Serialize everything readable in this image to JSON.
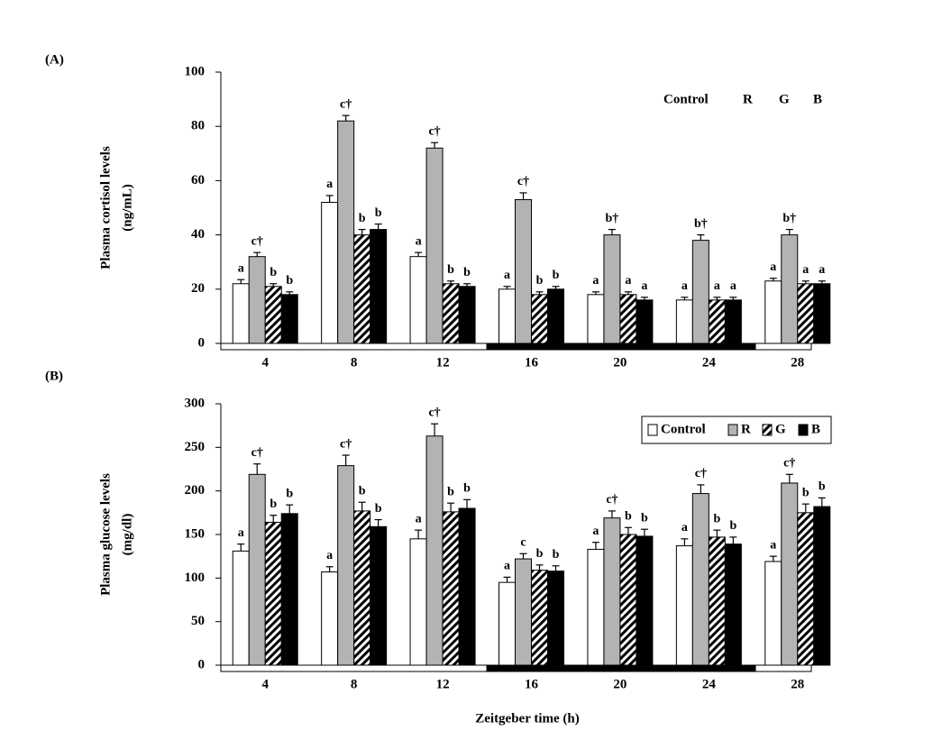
{
  "chart_data": [
    {
      "type": "bar",
      "panel_label": "(A)",
      "ylabel": [
        "Plasma cortisol levels",
        "(ng/mL)"
      ],
      "categories": [
        "4",
        "8",
        "12",
        "16",
        "20",
        "24",
        "28"
      ],
      "ylim": [
        0,
        100
      ],
      "yticks": [
        0,
        20,
        40,
        60,
        80,
        100
      ],
      "legend_style": "plain",
      "series": [
        {
          "name": "Control",
          "color": "#ffffff",
          "values": [
            22,
            52,
            32,
            20,
            18,
            16,
            23
          ],
          "errors": [
            1.5,
            2.5,
            1.5,
            1,
            1,
            1,
            1
          ],
          "annotations": [
            "a",
            "a",
            "a",
            "a",
            "a",
            "a",
            "a"
          ]
        },
        {
          "name": "R",
          "color": "#b3b3b3",
          "values": [
            32,
            82,
            72,
            53,
            40,
            38,
            40
          ],
          "errors": [
            1.5,
            2,
            2,
            2.5,
            2,
            2,
            2
          ],
          "annotations": [
            "c†",
            "c†",
            "c†",
            "c†",
            "b†",
            "b†",
            "b†"
          ]
        },
        {
          "name": "G",
          "color": "#000000",
          "pattern": "hatch",
          "values": [
            21,
            40,
            22,
            18,
            18,
            16,
            22
          ],
          "errors": [
            1,
            2,
            1,
            1,
            1,
            1,
            1
          ],
          "annotations": [
            "b",
            "b",
            "b",
            "b",
            "a",
            "a",
            "a"
          ]
        },
        {
          "name": "B",
          "color": "#000000",
          "values": [
            18,
            42,
            21,
            20,
            16,
            16,
            22
          ],
          "errors": [
            1,
            2,
            1,
            1,
            1,
            1,
            1
          ],
          "annotations": [
            "b",
            "b",
            "b",
            "b",
            "a",
            "a",
            "a"
          ]
        }
      ]
    },
    {
      "type": "bar",
      "panel_label": "(B)",
      "ylabel": [
        "Plasma glucose levels",
        "(mg/dl)"
      ],
      "xlabel": "Zeitgeber time (h)",
      "categories": [
        "4",
        "8",
        "12",
        "16",
        "20",
        "24",
        "28"
      ],
      "ylim": [
        0,
        300
      ],
      "yticks": [
        0,
        50,
        100,
        150,
        200,
        250,
        300
      ],
      "legend_style": "boxed",
      "series": [
        {
          "name": "Control",
          "color": "#ffffff",
          "values": [
            131,
            107,
            145,
            95,
            133,
            137,
            119
          ],
          "errors": [
            8,
            6,
            10,
            6,
            8,
            8,
            6
          ],
          "annotations": [
            "a",
            "a",
            "a",
            "a",
            "a",
            "a",
            "a"
          ]
        },
        {
          "name": "R",
          "color": "#b3b3b3",
          "values": [
            219,
            229,
            263,
            122,
            169,
            197,
            209
          ],
          "errors": [
            12,
            12,
            14,
            6,
            8,
            10,
            10
          ],
          "annotations": [
            "c†",
            "c†",
            "c†",
            "c",
            "c†",
            "c†",
            "c†"
          ]
        },
        {
          "name": "G",
          "color": "#000000",
          "pattern": "hatch",
          "values": [
            164,
            177,
            176,
            109,
            150,
            147,
            175
          ],
          "errors": [
            8,
            10,
            10,
            6,
            8,
            8,
            10
          ],
          "annotations": [
            "b",
            "b",
            "b",
            "b",
            "b",
            "b",
            "b"
          ]
        },
        {
          "name": "B",
          "color": "#000000",
          "values": [
            174,
            159,
            180,
            108,
            148,
            139,
            182
          ],
          "errors": [
            10,
            8,
            10,
            6,
            8,
            8,
            10
          ],
          "annotations": [
            "b",
            "b",
            "b",
            "b",
            "b",
            "b",
            "b"
          ]
        }
      ]
    }
  ]
}
